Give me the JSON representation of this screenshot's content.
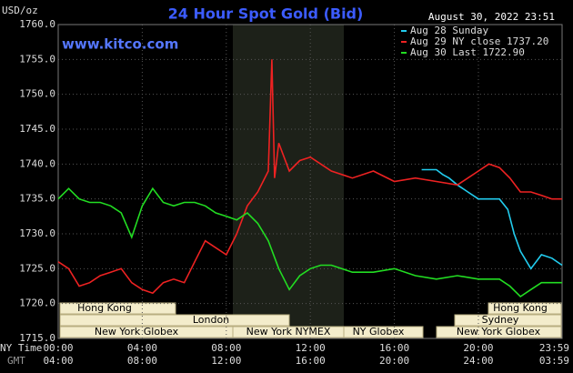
{
  "chart_data": {
    "type": "line",
    "title": "24 Hour Spot Gold (Bid)",
    "y_label": "USD/oz",
    "timestamp": "August 30, 2022 23:51",
    "source": "www.kitco.com",
    "x_label": "NY Time",
    "x2_label": "GMT",
    "xlim": [
      0,
      23.983
    ],
    "xticks": [
      {
        "value": 0,
        "label": "00:00"
      },
      {
        "value": 4,
        "label": "04:00"
      },
      {
        "value": 8,
        "label": "08:00"
      },
      {
        "value": 12,
        "label": "12:00"
      },
      {
        "value": 16,
        "label": "16:00"
      },
      {
        "value": 20,
        "label": "20:00"
      },
      {
        "value": 23.983,
        "label": "23:59"
      }
    ],
    "gmt_ticks": [
      "04:00",
      "08:00",
      "12:00",
      "16:00",
      "20:00",
      "24:00",
      "03:59"
    ],
    "ylim": [
      1715,
      1760
    ],
    "yticks": [
      {
        "value": 1715,
        "label": "1715.0"
      },
      {
        "value": 1720,
        "label": "1720.0"
      },
      {
        "value": 1725,
        "label": "1725.0"
      },
      {
        "value": 1730,
        "label": "1730.0"
      },
      {
        "value": 1735,
        "label": "1735.0"
      },
      {
        "value": 1740,
        "label": "1740.0"
      },
      {
        "value": 1745,
        "label": "1745.0"
      },
      {
        "value": 1750,
        "label": "1750.0"
      },
      {
        "value": 1755,
        "label": "1755.0"
      },
      {
        "value": 1760,
        "label": "1760.0"
      }
    ],
    "grid": true,
    "sessions": [
      "Hong Kong",
      "London",
      "New York Globex",
      "New York NYMEX",
      "NY Globex",
      "Hong Kong",
      "Sydney",
      "New York Globex"
    ],
    "series": [
      {
        "name": "Aug 28 Sunday",
        "color": "#22ccee",
        "x": [
          17.3,
          18.0,
          18.3,
          18.6,
          19.0,
          19.5,
          20.0,
          20.5,
          21.0,
          21.4,
          21.7,
          22.0,
          22.5,
          23.0,
          23.5,
          23.983
        ],
        "values": [
          1739.2,
          1739.2,
          1738.5,
          1738.0,
          1737.0,
          1736.0,
          1735.0,
          1735.0,
          1735.0,
          1733.5,
          1730.0,
          1727.5,
          1725.0,
          1727.0,
          1726.5,
          1725.5
        ]
      },
      {
        "name": "Aug 29 NY close 1737.20",
        "color": "#ee2222",
        "x": [
          0,
          0.5,
          1.0,
          1.5,
          2.0,
          2.5,
          3.0,
          3.5,
          4.0,
          4.5,
          5.0,
          5.5,
          6.0,
          6.5,
          7.0,
          7.5,
          8.0,
          8.5,
          9.0,
          9.5,
          10.0,
          10.17,
          10.3,
          10.5,
          11.0,
          11.5,
          12.0,
          12.5,
          13.0,
          14.0,
          15.0,
          16.0,
          17.0,
          18.0,
          19.0,
          19.5,
          20.0,
          20.5,
          21.0,
          21.5,
          22.0,
          22.5,
          23.0,
          23.5,
          23.983
        ],
        "values": [
          1726.0,
          1725.0,
          1722.5,
          1723.0,
          1724.0,
          1724.5,
          1725.0,
          1723.0,
          1722.0,
          1721.5,
          1723.0,
          1723.5,
          1723.0,
          1726.0,
          1729.0,
          1728.0,
          1727.0,
          1730.0,
          1734.0,
          1736.0,
          1739.0,
          1755.0,
          1738.0,
          1743.0,
          1739.0,
          1740.5,
          1741.0,
          1740.0,
          1739.0,
          1738.0,
          1739.0,
          1737.5,
          1738.0,
          1737.5,
          1737.0,
          1738.0,
          1739.0,
          1740.0,
          1739.5,
          1738.0,
          1736.0,
          1736.0,
          1735.5,
          1735.0,
          1735.0
        ]
      },
      {
        "name": "Aug 30 Last 1722.90",
        "color": "#22dd22",
        "x": [
          0,
          0.5,
          1.0,
          1.5,
          2.0,
          2.5,
          3.0,
          3.5,
          4.0,
          4.5,
          5.0,
          5.5,
          6.0,
          6.5,
          7.0,
          7.5,
          8.0,
          8.5,
          9.0,
          9.5,
          10.0,
          10.5,
          11.0,
          11.5,
          12.0,
          12.5,
          13.0,
          14.0,
          15.0,
          16.0,
          17.0,
          18.0,
          19.0,
          20.0,
          21.0,
          21.5,
          22.0,
          22.5,
          23.0,
          23.5,
          23.983
        ],
        "values": [
          1735.0,
          1736.5,
          1735.0,
          1734.5,
          1734.5,
          1734.0,
          1733.0,
          1729.5,
          1734.0,
          1736.5,
          1734.5,
          1734.0,
          1734.5,
          1734.5,
          1734.0,
          1733.0,
          1732.5,
          1732.0,
          1733.0,
          1731.5,
          1729.0,
          1725.0,
          1722.0,
          1724.0,
          1725.0,
          1725.5,
          1725.5,
          1724.5,
          1724.5,
          1725.0,
          1724.0,
          1723.5,
          1724.0,
          1723.5,
          1723.5,
          1722.5,
          1721.0,
          1722.0,
          1723.0,
          1723.0,
          1723.0
        ]
      }
    ]
  }
}
